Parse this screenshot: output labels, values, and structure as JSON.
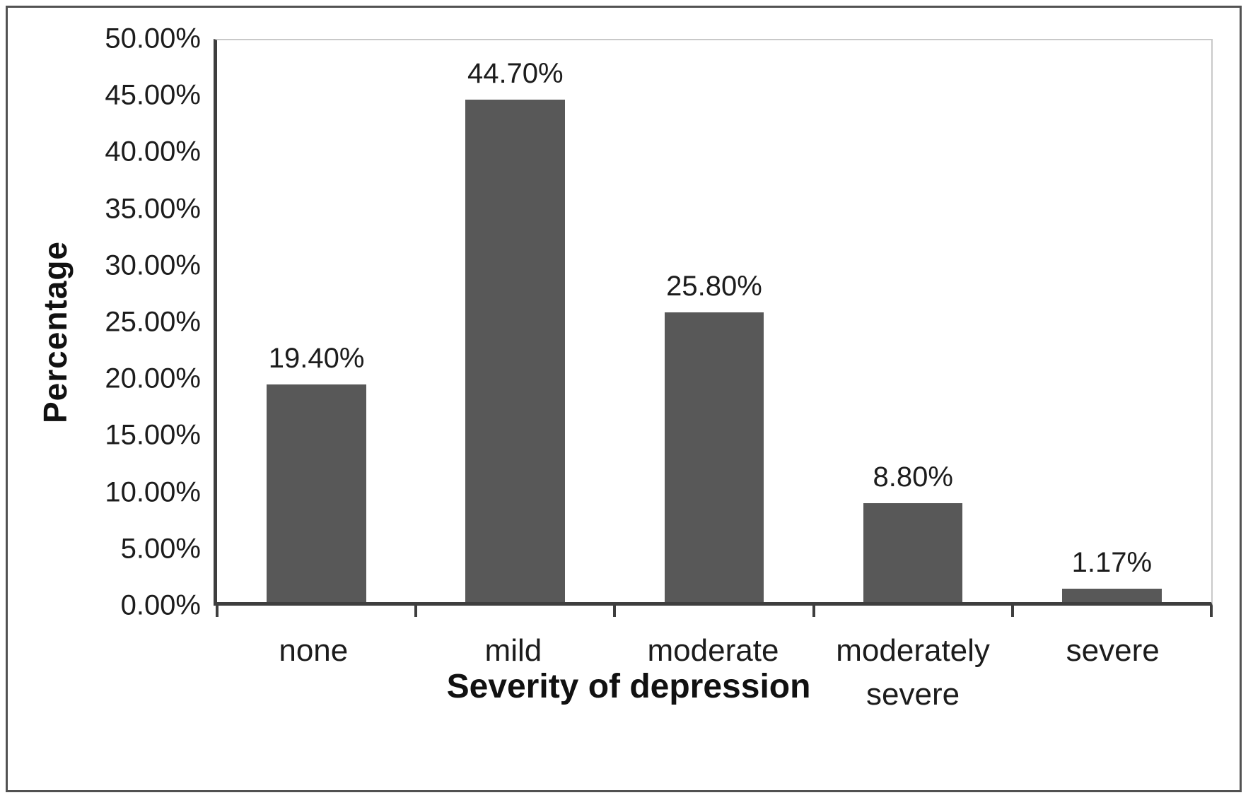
{
  "chart_data": {
    "type": "bar",
    "title": "",
    "xlabel": "Severity of depression",
    "ylabel": "Percentage",
    "categories": [
      "none",
      "mild",
      "moderate",
      "moderately severe",
      "severe"
    ],
    "values": [
      19.4,
      44.7,
      25.8,
      8.8,
      1.17
    ],
    "value_labels": [
      "19.40%",
      "44.70%",
      "25.80%",
      "8.80%",
      "1.17%"
    ],
    "ylim": [
      0,
      50
    ],
    "ytick_interval": 5,
    "ytick_labels": [
      "0.00%",
      "5.00%",
      "10.00%",
      "15.00%",
      "20.00%",
      "25.00%",
      "30.00%",
      "35.00%",
      "40.00%",
      "45.00%",
      "50.00%"
    ],
    "grid": false,
    "legend": false,
    "bar_color": "#585858",
    "axis_line_color": "#3e3e3e",
    "plot_border_color": "#c9c9c9",
    "text_color": "#1c1c1c"
  }
}
